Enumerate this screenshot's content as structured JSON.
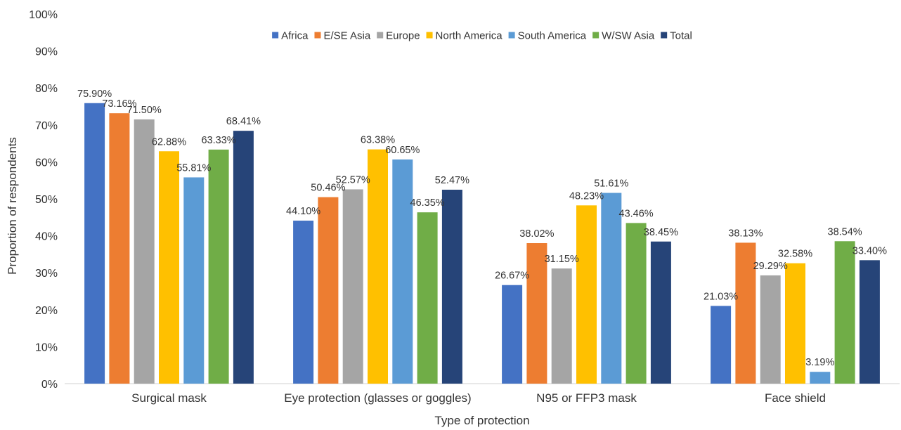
{
  "chart_data": {
    "type": "bar",
    "title": "",
    "xlabel": "Type of protection",
    "ylabel": "Proportion of respondents",
    "ylim": [
      0,
      100
    ],
    "ytick_labels": [
      "0%",
      "10%",
      "20%",
      "30%",
      "40%",
      "50%",
      "60%",
      "70%",
      "80%",
      "90%",
      "100%"
    ],
    "grid": false,
    "legend_position": "top",
    "categories": [
      "Surgical mask",
      "Eye protection (glasses or goggles)",
      "N95 or FFP3 mask",
      "Face shield"
    ],
    "series": [
      {
        "name": "Africa",
        "color": "#4472C4",
        "values": [
          75.9,
          44.1,
          26.67,
          21.03
        ],
        "labels": [
          "75.90%",
          "44.10%",
          "26.67%",
          "21.03%"
        ]
      },
      {
        "name": "E/SE Asia",
        "color": "#ED7D31",
        "values": [
          73.16,
          50.46,
          38.02,
          38.13
        ],
        "labels": [
          "73.16%",
          "50.46%",
          "38.02%",
          "38.13%"
        ]
      },
      {
        "name": "Europe",
        "color": "#A5A5A5",
        "values": [
          71.5,
          52.57,
          31.15,
          29.29
        ],
        "labels": [
          "71.50%",
          "52.57%",
          "31.15%",
          "29.29%"
        ]
      },
      {
        "name": "North America",
        "color": "#FFC000",
        "values": [
          62.88,
          63.38,
          48.23,
          32.58
        ],
        "labels": [
          "62.88%",
          "63.38%",
          "48.23%",
          "32.58%"
        ]
      },
      {
        "name": "South America",
        "color": "#5B9BD5",
        "values": [
          55.81,
          60.65,
          51.61,
          3.19
        ],
        "labels": [
          "55.81%",
          "60.65%",
          "51.61%",
          "3.19%"
        ]
      },
      {
        "name": "W/SW Asia",
        "color": "#70AD47",
        "values": [
          63.33,
          46.35,
          43.46,
          38.54
        ],
        "labels": [
          "63.33%",
          "46.35%",
          "43.46%",
          "38.54%"
        ]
      },
      {
        "name": "Total",
        "color": "#264478",
        "values": [
          68.41,
          52.47,
          38.45,
          33.4
        ],
        "labels": [
          "68.41%",
          "52.47%",
          "38.45%",
          "33.40%"
        ]
      }
    ]
  }
}
